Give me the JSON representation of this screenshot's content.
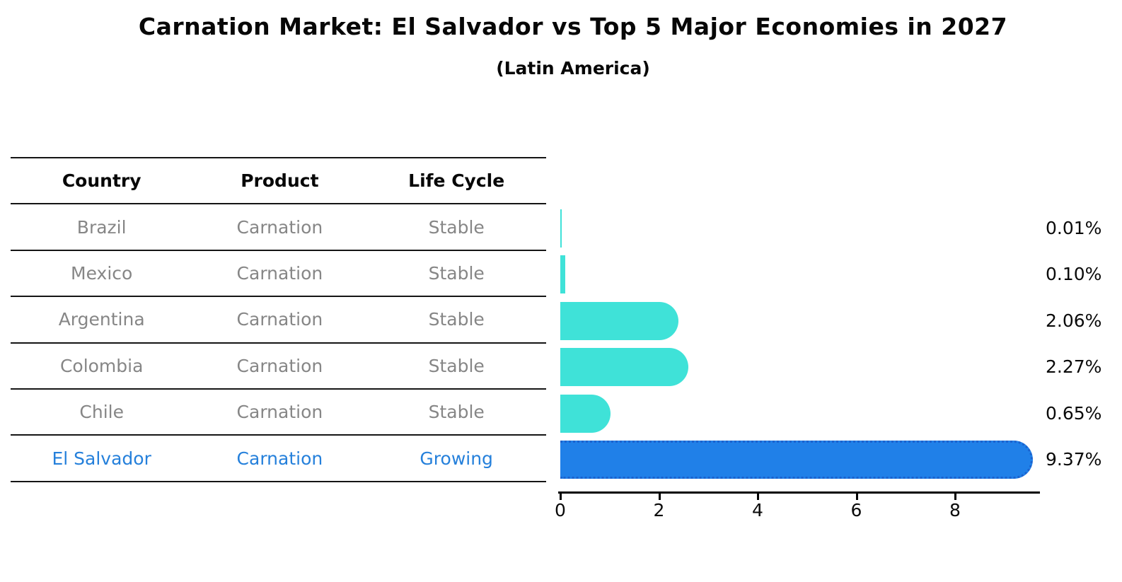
{
  "title": "Carnation Market: El Salvador vs Top 5 Major Economies in 2027",
  "subtitle": "(Latin America)",
  "table": {
    "headers": [
      "Country",
      "Product",
      "Life Cycle"
    ],
    "rows": [
      {
        "country": "Brazil",
        "product": "Carnation",
        "life_cycle": "Stable",
        "highlighted": false
      },
      {
        "country": "Mexico",
        "product": "Carnation",
        "life_cycle": "Stable",
        "highlighted": false
      },
      {
        "country": "Argentina",
        "product": "Carnation",
        "life_cycle": "Stable",
        "highlighted": false
      },
      {
        "country": "Colombia",
        "product": "Carnation",
        "life_cycle": "Stable",
        "highlighted": false
      },
      {
        "country": "Chile",
        "product": "Carnation",
        "life_cycle": "Stable",
        "highlighted": false
      },
      {
        "country": "El Salvador",
        "product": "Carnation",
        "life_cycle": "Growing",
        "highlighted": true
      }
    ]
  },
  "chart_data": {
    "type": "bar",
    "orientation": "horizontal",
    "categories": [
      "Brazil",
      "Mexico",
      "Argentina",
      "Colombia",
      "Chile",
      "El Salvador"
    ],
    "values": [
      0.01,
      0.1,
      2.06,
      2.27,
      0.65,
      9.37
    ],
    "value_labels": [
      "0.01%",
      "0.10%",
      "2.06%",
      "2.27%",
      "0.65%",
      "9.37%"
    ],
    "highlight_index": 5,
    "x_ticks": [
      "0",
      "2",
      "4",
      "6",
      "8"
    ],
    "x_tick_values": [
      0,
      2,
      4,
      6,
      8
    ],
    "xlim": [
      0,
      9.8
    ],
    "grid": false,
    "legend": false,
    "bar_color_default": "#3FE2D8",
    "bar_color_highlight": "#2080E8",
    "highlight_border_color": "#1B62CE",
    "title": "Carnation Market: El Salvador vs Top 5 Major Economies in 2027",
    "subtitle": "(Latin America)"
  },
  "colors": {
    "table_line": "#151515",
    "row_text": "#868686",
    "highlight_text": "#2580DB",
    "axis": "#000000",
    "label_text": "#0a0a0a"
  }
}
